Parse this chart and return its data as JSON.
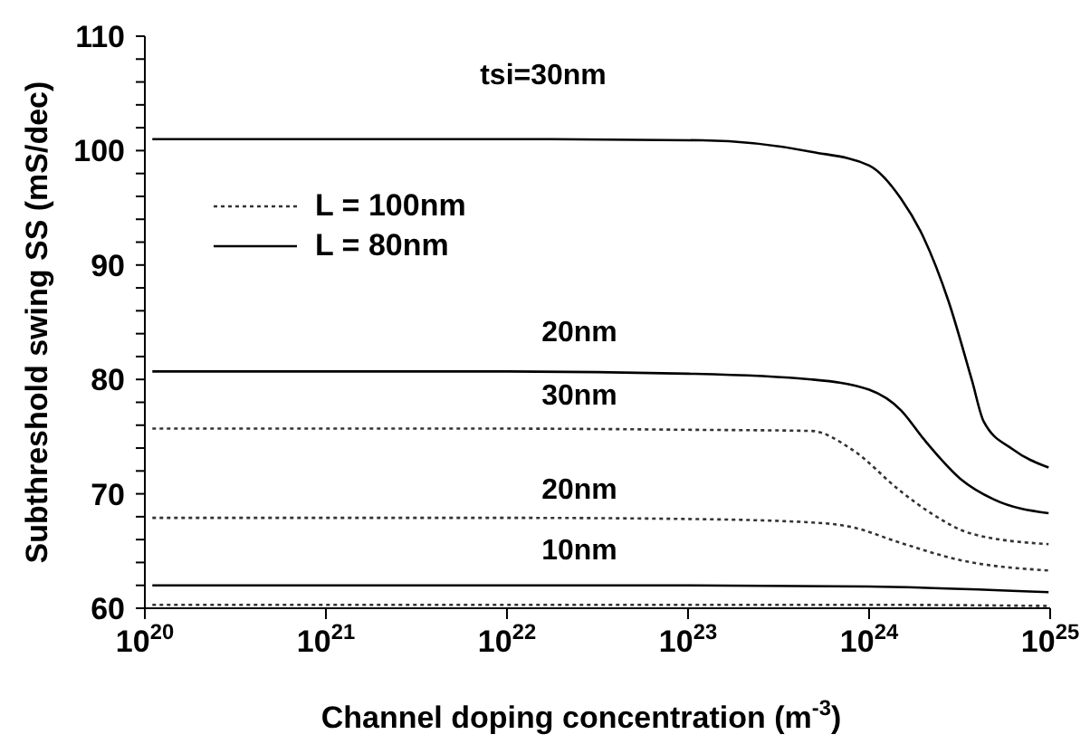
{
  "chart_data": {
    "type": "line",
    "xlabel": "Channel doping concentration (m$^{-3}$)",
    "ylabel": "Subthreshold swing SS  (mS/dec)",
    "log": "x",
    "grid": false,
    "legend": "top left",
    "marker": "none",
    "xlim": [
      1e+20,
      1e+25
    ],
    "xticks": [
      {
        "value": 1e+20,
        "label": "10$^{20}$"
      },
      {
        "value": 1e+21,
        "label": "10$^{21}$"
      },
      {
        "value": 1e+22,
        "label": "10$^{22}$"
      },
      {
        "value": 1e+23,
        "label": "10$^{23}$"
      },
      {
        "value": 1e+24,
        "label": "10$^{24}$"
      },
      {
        "value": 1e+25,
        "label": "10$^{25}$"
      }
    ],
    "ylim": [
      60,
      110
    ],
    "yticks": [
      60,
      {
        "value": 62,
        "label": null
      },
      {
        "value": 64,
        "label": null
      },
      {
        "value": 66,
        "label": null
      },
      {
        "value": 68,
        "label": null
      },
      70,
      {
        "value": 72,
        "label": null
      },
      {
        "value": 74,
        "label": null
      },
      {
        "value": 76,
        "label": null
      },
      {
        "value": 78,
        "label": null
      },
      80,
      {
        "value": 82,
        "label": null
      },
      {
        "value": 84,
        "label": null
      },
      {
        "value": 86,
        "label": null
      },
      {
        "value": 88,
        "label": null
      },
      90,
      {
        "value": 92,
        "label": null
      },
      {
        "value": 94,
        "label": null
      },
      {
        "value": 96,
        "label": null
      },
      {
        "value": 98,
        "label": null
      },
      100,
      {
        "value": 102,
        "label": null
      },
      {
        "value": 104,
        "label": null
      },
      {
        "value": 106,
        "label": null
      },
      {
        "value": 108,
        "label": null
      },
      110
    ],
    "series": [
      {
        "name": "L = 100nm",
        "color": "#333333",
        "line_style": "dotted",
        "x": [
          1.1e+20,
          1e+22,
          1e+23,
          4.8e+23,
          8e+23,
          1.5e+24,
          2.2e+24,
          3.7e+24,
          9.8e+24
        ],
        "values": [
          75.7,
          75.7,
          75.6,
          75.5,
          73.9,
          70.2,
          68.3,
          66.5,
          65.6
        ]
      },
      {
        "name": "L = 80nm",
        "color": "#000000",
        "line_style": "solid",
        "x": [
          1.1e+20,
          1e+22,
          1.2e+23,
          4.8e+23,
          1e+24,
          1.5e+24,
          2e+24,
          2.75e+24,
          3.7e+24,
          4.3e+24,
          6.2e+24,
          9.8e+24
        ],
        "values": [
          101,
          101,
          100.9,
          99.9,
          98.7,
          95.8,
          92.4,
          86.8,
          79.9,
          76.3,
          73.9,
          72.3
        ]
      },
      {
        "color": "#000000",
        "line_style": "solid",
        "x": [
          1.1e+20,
          1e+22,
          1e+23,
          4.8e+23,
          1e+24,
          1.5e+24,
          2e+24,
          3.2e+24,
          4.9e+24,
          9.8e+24
        ],
        "values": [
          80.7,
          80.7,
          80.5,
          80.0,
          79.1,
          77.3,
          74.8,
          71.3,
          69.5,
          68.3
        ]
      },
      {
        "color": "#333333",
        "line_style": "dotted",
        "x": [
          1.1e+20,
          1e+22,
          1e+23,
          4.8e+23,
          8e+23,
          1.5e+24,
          3.2e+24,
          9.8e+24
        ],
        "values": [
          67.9,
          67.9,
          67.8,
          67.5,
          67.1,
          65.7,
          64.2,
          63.3
        ]
      },
      {
        "color": "#000000",
        "line_style": "solid",
        "x": [
          1.1e+20,
          1e+23,
          1e+24,
          9.8e+24
        ],
        "values": [
          62,
          62,
          61.9,
          61.4
        ]
      },
      {
        "color": "#333333",
        "line_style": "dotted",
        "x": [
          1.1e+20,
          1e+24,
          9.8e+24
        ],
        "values": [
          60.3,
          60.3,
          60.2
        ]
      }
    ],
    "annotations": [
      "tsi=30nm",
      "20nm",
      "30nm",
      "20nm",
      "10nm"
    ]
  }
}
